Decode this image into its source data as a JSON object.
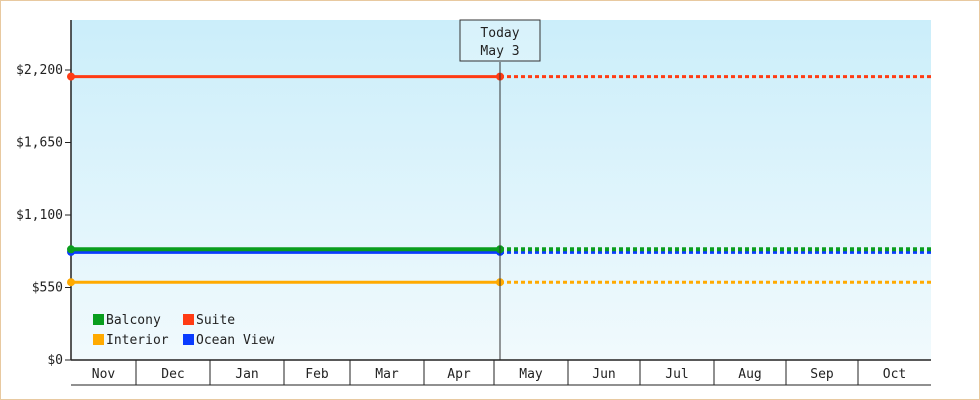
{
  "chart_data": {
    "type": "line",
    "categories": [
      "Nov",
      "Dec",
      "Jan",
      "Feb",
      "Mar",
      "Apr",
      "May",
      "Jun",
      "Jul",
      "Aug",
      "Sep",
      "Oct"
    ],
    "yticks": [
      "$0",
      "$550",
      "$1,100",
      "$1,650",
      "$2,200"
    ],
    "ylim": [
      0,
      2200
    ],
    "today": {
      "line1": "Today",
      "line2": "May 3"
    },
    "series": [
      {
        "name": "Suite",
        "color": "#ff3b14",
        "value": 2150
      },
      {
        "name": "Balcony",
        "color": "#0a9e1e",
        "value": 840
      },
      {
        "name": "Ocean View",
        "color": "#0a3cff",
        "value": 820
      },
      {
        "name": "Interior",
        "color": "#ffaa00",
        "value": 590
      }
    ],
    "legend": [
      {
        "name": "Balcony",
        "color": "#0a9e1e"
      },
      {
        "name": "Suite",
        "color": "#ff3b14"
      },
      {
        "name": "Interior",
        "color": "#ffaa00"
      },
      {
        "name": "Ocean View",
        "color": "#0a3cff"
      }
    ],
    "grid": false,
    "legend_position": "bottom-left"
  }
}
